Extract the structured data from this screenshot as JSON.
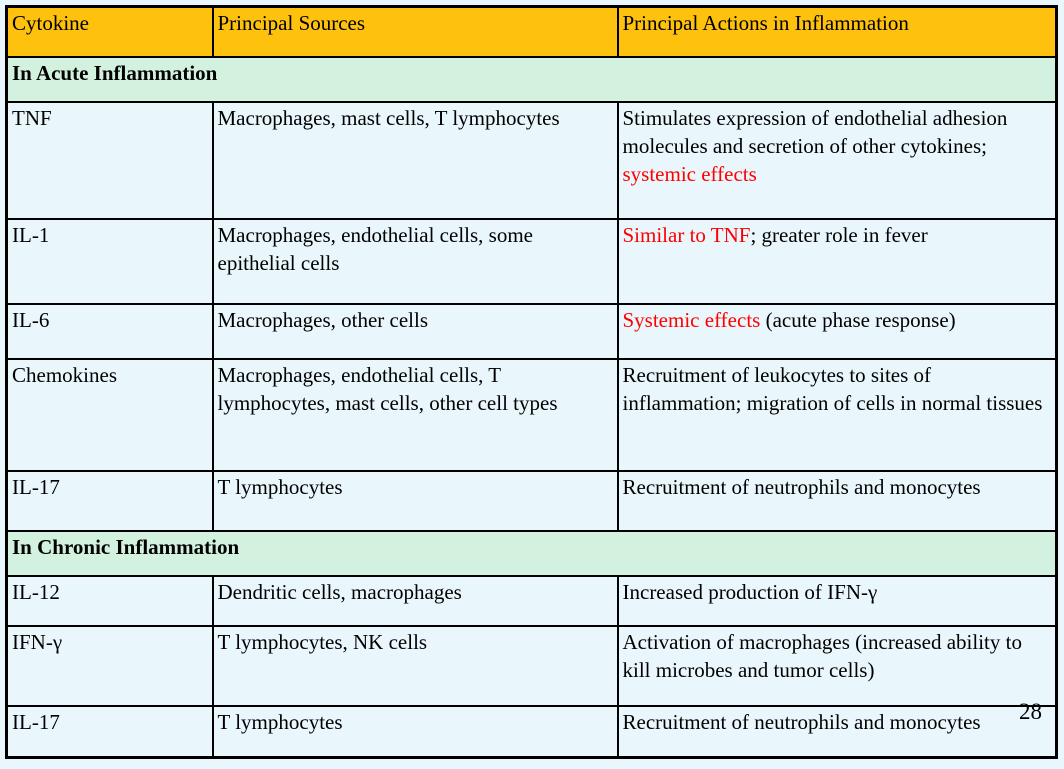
{
  "page": {
    "background_color": "#E9F6FB",
    "page_number": "28"
  },
  "table": {
    "border_color": "#000000",
    "red_color": "#FF0000",
    "header": {
      "bg": "#FEC10D",
      "columns": [
        "Cytokine",
        "Principal Sources",
        "Principal Actions in Inflammation"
      ]
    },
    "section_bg": "#D2F2DF",
    "rows": [
      {
        "type": "section",
        "label": "In Acute Inflammation"
      },
      {
        "type": "data",
        "cytokine": "TNF",
        "sources": "Macrophages, mast cells, T lymphocytes",
        "actions": [
          {
            "text": "Stimulates expression of endothelial adhesion molecules and secretion of other cytokines; ",
            "red": false
          },
          {
            "text": "systemic effects",
            "red": true
          }
        ]
      },
      {
        "type": "data",
        "cytokine": "IL-1",
        "sources": "Macrophages, endothelial cells, some epithelial cells",
        "actions": [
          {
            "text": "Similar to TNF",
            "red": true
          },
          {
            "text": "; greater role in fever",
            "red": false
          }
        ]
      },
      {
        "type": "data",
        "cytokine": "IL-6",
        "sources": "Macrophages, other cells",
        "actions": [
          {
            "text": "Systemic effects",
            "red": true
          },
          {
            "text": " (acute phase response)",
            "red": false
          }
        ]
      },
      {
        "type": "data",
        "cytokine": "Chemokines",
        "sources": "Macrophages, endothelial cells, T lymphocytes, mast cells, other cell types",
        "actions": [
          {
            "text": "Recruitment of leukocytes to sites of inflammation; migration of cells in normal tissues",
            "red": false
          }
        ]
      },
      {
        "type": "data",
        "cytokine": "IL-17",
        "sources": "T lymphocytes",
        "actions": [
          {
            "text": "Recruitment of neutrophils and monocytes",
            "red": false
          }
        ]
      },
      {
        "type": "section",
        "label": "In Chronic Inflammation"
      },
      {
        "type": "data",
        "cytokine": "IL-12",
        "sources": "Dendritic cells, macrophages",
        "actions": [
          {
            "text": "Increased production of IFN-γ",
            "red": false
          }
        ]
      },
      {
        "type": "data",
        "cytokine": "IFN-γ",
        "sources": "T lymphocytes, NK cells",
        "actions": [
          {
            "text": "Activation of macrophages (increased ability to kill microbes and tumor cells)",
            "red": false
          }
        ]
      },
      {
        "type": "data",
        "cytokine": "IL-17",
        "sources": "T lymphocytes",
        "actions": [
          {
            "text": "Recruitment of neutrophils and monocytes",
            "red": false
          }
        ]
      }
    ]
  }
}
